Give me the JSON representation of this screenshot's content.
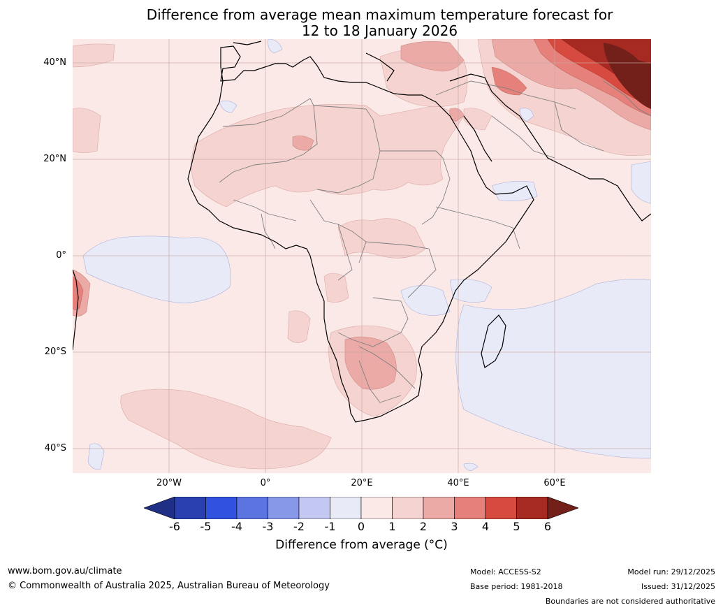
{
  "title": {
    "line1": "Difference from average mean maximum temperature forecast for",
    "line2": "12 to 18 January 2026"
  },
  "map": {
    "lat_labels": [
      "40°N",
      "20°N",
      "0°",
      "20°S",
      "40°S"
    ],
    "lon_labels": [
      "20°W",
      "0°",
      "20°E",
      "40°E",
      "60°E"
    ],
    "extent": {
      "lon_min": -40,
      "lon_max": 80,
      "lat_min": -45,
      "lat_max": 45
    },
    "regions": [
      "Africa",
      "Middle East",
      "Southern Europe",
      "Atlantic Ocean",
      "Indian Ocean"
    ]
  },
  "colorbar": {
    "ticks": [
      "-6",
      "-5",
      "-4",
      "-3",
      "-2",
      "-1",
      "0",
      "1",
      "2",
      "3",
      "4",
      "5",
      "6"
    ],
    "colors": [
      "#1f2f86",
      "#2a40b0",
      "#3151e0",
      "#5c74e0",
      "#8798e8",
      "#c2c8f2",
      "#e8eaf8",
      "#fbe9e7",
      "#f5d3d0",
      "#ebaaa6",
      "#e5817a",
      "#d64a3f",
      "#a62a22",
      "#73201a"
    ],
    "label": "Difference from average (°C)"
  },
  "footer": {
    "website": "www.bom.gov.au/climate",
    "copyright": "© Commonwealth of Australia 2025, Australian Bureau of Meteorology",
    "model": "Model: ACCESS-S2",
    "base_period": "Base period: 1981-2018",
    "model_run": "Model run: 29/12/2025",
    "issued": "Issued: 31/12/2025",
    "disclaimer": "Boundaries are not considered authoritative"
  }
}
